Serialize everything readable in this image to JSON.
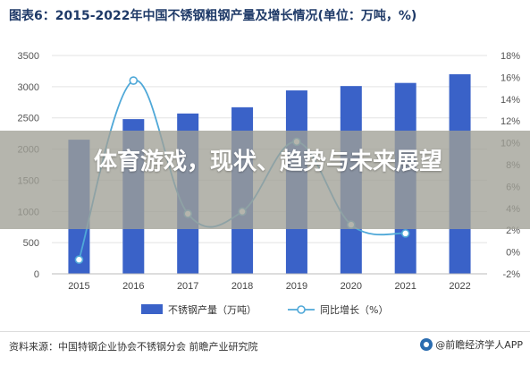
{
  "chart_data": {
    "type": "bar",
    "title": "图表6：2015-2022年中国不锈钢粗钢产量及增长情况(单位：万吨，%)",
    "categories": [
      "2015",
      "2016",
      "2017",
      "2018",
      "2019",
      "2020",
      "2021",
      "2022"
    ],
    "series": [
      {
        "name": "不锈钢产量（万吨）",
        "type": "bar",
        "axis": "left",
        "color": "#3a62c8",
        "values": [
          2150,
          2480,
          2570,
          2670,
          2940,
          3010,
          3060,
          3200
        ]
      },
      {
        "name": "同比增长（%）",
        "type": "line",
        "axis": "right",
        "color": "#4fa8d8",
        "values": [
          -0.7,
          15.7,
          3.5,
          3.7,
          10.1,
          2.5,
          1.7,
          null
        ]
      }
    ],
    "ylim_left": [
      0,
      3500
    ],
    "yticks_left": [
      0,
      500,
      1000,
      1500,
      2000,
      2500,
      3000,
      3500
    ],
    "ylim_right": [
      -2,
      18
    ],
    "yticks_right": [
      "-2%",
      "0%",
      "2%",
      "4%",
      "6%",
      "8%",
      "10%",
      "12%",
      "14%",
      "16%",
      "18%"
    ],
    "legend_position": "bottom",
    "grid": true
  },
  "overlay": {
    "title": "体育游戏，现状、趋势与未来展望"
  },
  "footer": {
    "source": "资料来源：中国特钢企业协会不锈钢分会 前瞻产业研究院",
    "brand": "@前瞻经济学人APP"
  }
}
